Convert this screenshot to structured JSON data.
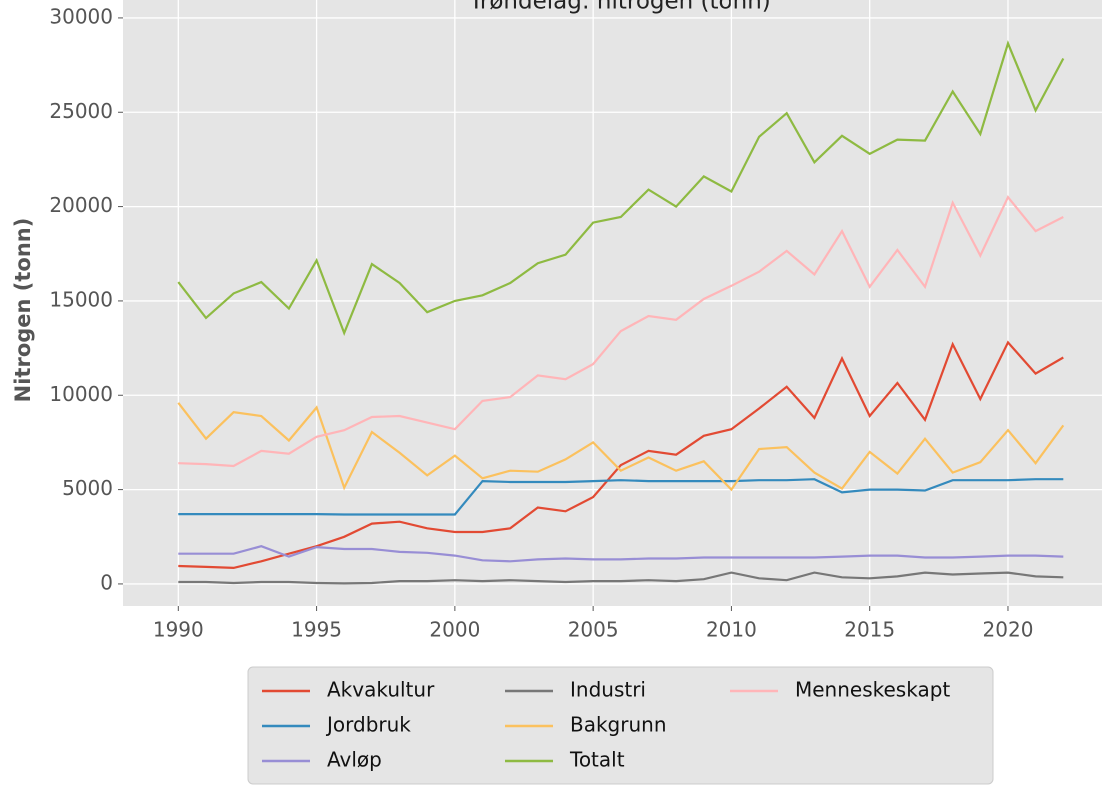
{
  "chart_data": {
    "type": "line",
    "title": "Trøndelag: nitrogen (tonn)",
    "y_label": "Nitrogen (tonn)",
    "x": [
      1990,
      1991,
      1992,
      1993,
      1994,
      1995,
      1996,
      1997,
      1998,
      1999,
      2000,
      2001,
      2002,
      2003,
      2004,
      2005,
      2006,
      2007,
      2008,
      2009,
      2010,
      2011,
      2012,
      2013,
      2014,
      2015,
      2016,
      2017,
      2018,
      2019,
      2020,
      2021,
      2022
    ],
    "series": [
      {
        "name": "Akvakultur",
        "color": "#E24A33",
        "values": [
          950,
          900,
          850,
          1200,
          1600,
          2000,
          2500,
          3200,
          3300,
          2950,
          2750,
          2750,
          2950,
          4050,
          3850,
          4600,
          6300,
          7050,
          6850,
          7850,
          8200,
          9300,
          10450,
          8800,
          11950,
          8900,
          10650,
          8700,
          12700,
          9800,
          12800,
          11150,
          12000
        ]
      },
      {
        "name": "Jordbruk",
        "color": "#348ABD",
        "values": [
          3700,
          3700,
          3700,
          3700,
          3700,
          3700,
          3680,
          3680,
          3680,
          3680,
          3680,
          5450,
          5400,
          5400,
          5400,
          5450,
          5500,
          5450,
          5450,
          5450,
          5450,
          5500,
          5500,
          5550,
          4850,
          5000,
          5000,
          4950,
          5500,
          5500,
          5500,
          5550,
          5550
        ]
      },
      {
        "name": "Avløp",
        "color": "#988ED5",
        "values": [
          1600,
          1600,
          1600,
          2000,
          1450,
          1950,
          1850,
          1850,
          1700,
          1650,
          1500,
          1250,
          1200,
          1300,
          1350,
          1300,
          1300,
          1350,
          1350,
          1400,
          1400,
          1400,
          1400,
          1400,
          1450,
          1500,
          1500,
          1400,
          1400,
          1450,
          1500,
          1500,
          1450
        ]
      },
      {
        "name": "Industri",
        "color": "#777777",
        "values": [
          100,
          100,
          50,
          100,
          100,
          50,
          30,
          50,
          150,
          150,
          200,
          150,
          200,
          150,
          100,
          150,
          150,
          200,
          150,
          250,
          600,
          300,
          200,
          600,
          350,
          300,
          400,
          600,
          500,
          550,
          600,
          400,
          350
        ]
      },
      {
        "name": "Bakgrunn",
        "color": "#FBC15E",
        "values": [
          9600,
          7700,
          9100,
          8900,
          7600,
          9350,
          5100,
          8050,
          6950,
          5750,
          6800,
          5600,
          6000,
          5950,
          6600,
          7500,
          6000,
          6700,
          6000,
          6500,
          5000,
          7150,
          7250,
          5900,
          5050,
          7000,
          5850,
          7700,
          5900,
          6450,
          8150,
          6400,
          8400
        ]
      },
      {
        "name": "Totalt",
        "color": "#8EBA42",
        "values": [
          16000,
          14100,
          15400,
          16000,
          14600,
          17150,
          13300,
          16950,
          15950,
          14400,
          15000,
          15300,
          15950,
          17000,
          17450,
          19150,
          19450,
          20900,
          20000,
          21600,
          20800,
          23700,
          24950,
          22350,
          23750,
          22800,
          23550,
          23500,
          26100,
          23850,
          28650,
          25100,
          27850
        ]
      },
      {
        "name": "Menneskeskapt",
        "color": "#FFB5B8",
        "values": [
          6400,
          6350,
          6250,
          7050,
          6900,
          7800,
          8150,
          8850,
          8900,
          8550,
          8200,
          9700,
          9900,
          11050,
          10850,
          11650,
          13400,
          14200,
          14000,
          15100,
          15800,
          16550,
          17650,
          16400,
          18700,
          15750,
          17700,
          15750,
          20200,
          17400,
          20500,
          18700,
          19450
        ]
      }
    ],
    "xlim": [
      1988,
      2023.4
    ],
    "ylim": [
      -1170,
      30950
    ],
    "xticks": [
      1990,
      1995,
      2000,
      2005,
      2010,
      2015,
      2020
    ],
    "yticks": [
      0,
      5000,
      10000,
      15000,
      20000,
      25000,
      30000
    ],
    "grid": true
  }
}
